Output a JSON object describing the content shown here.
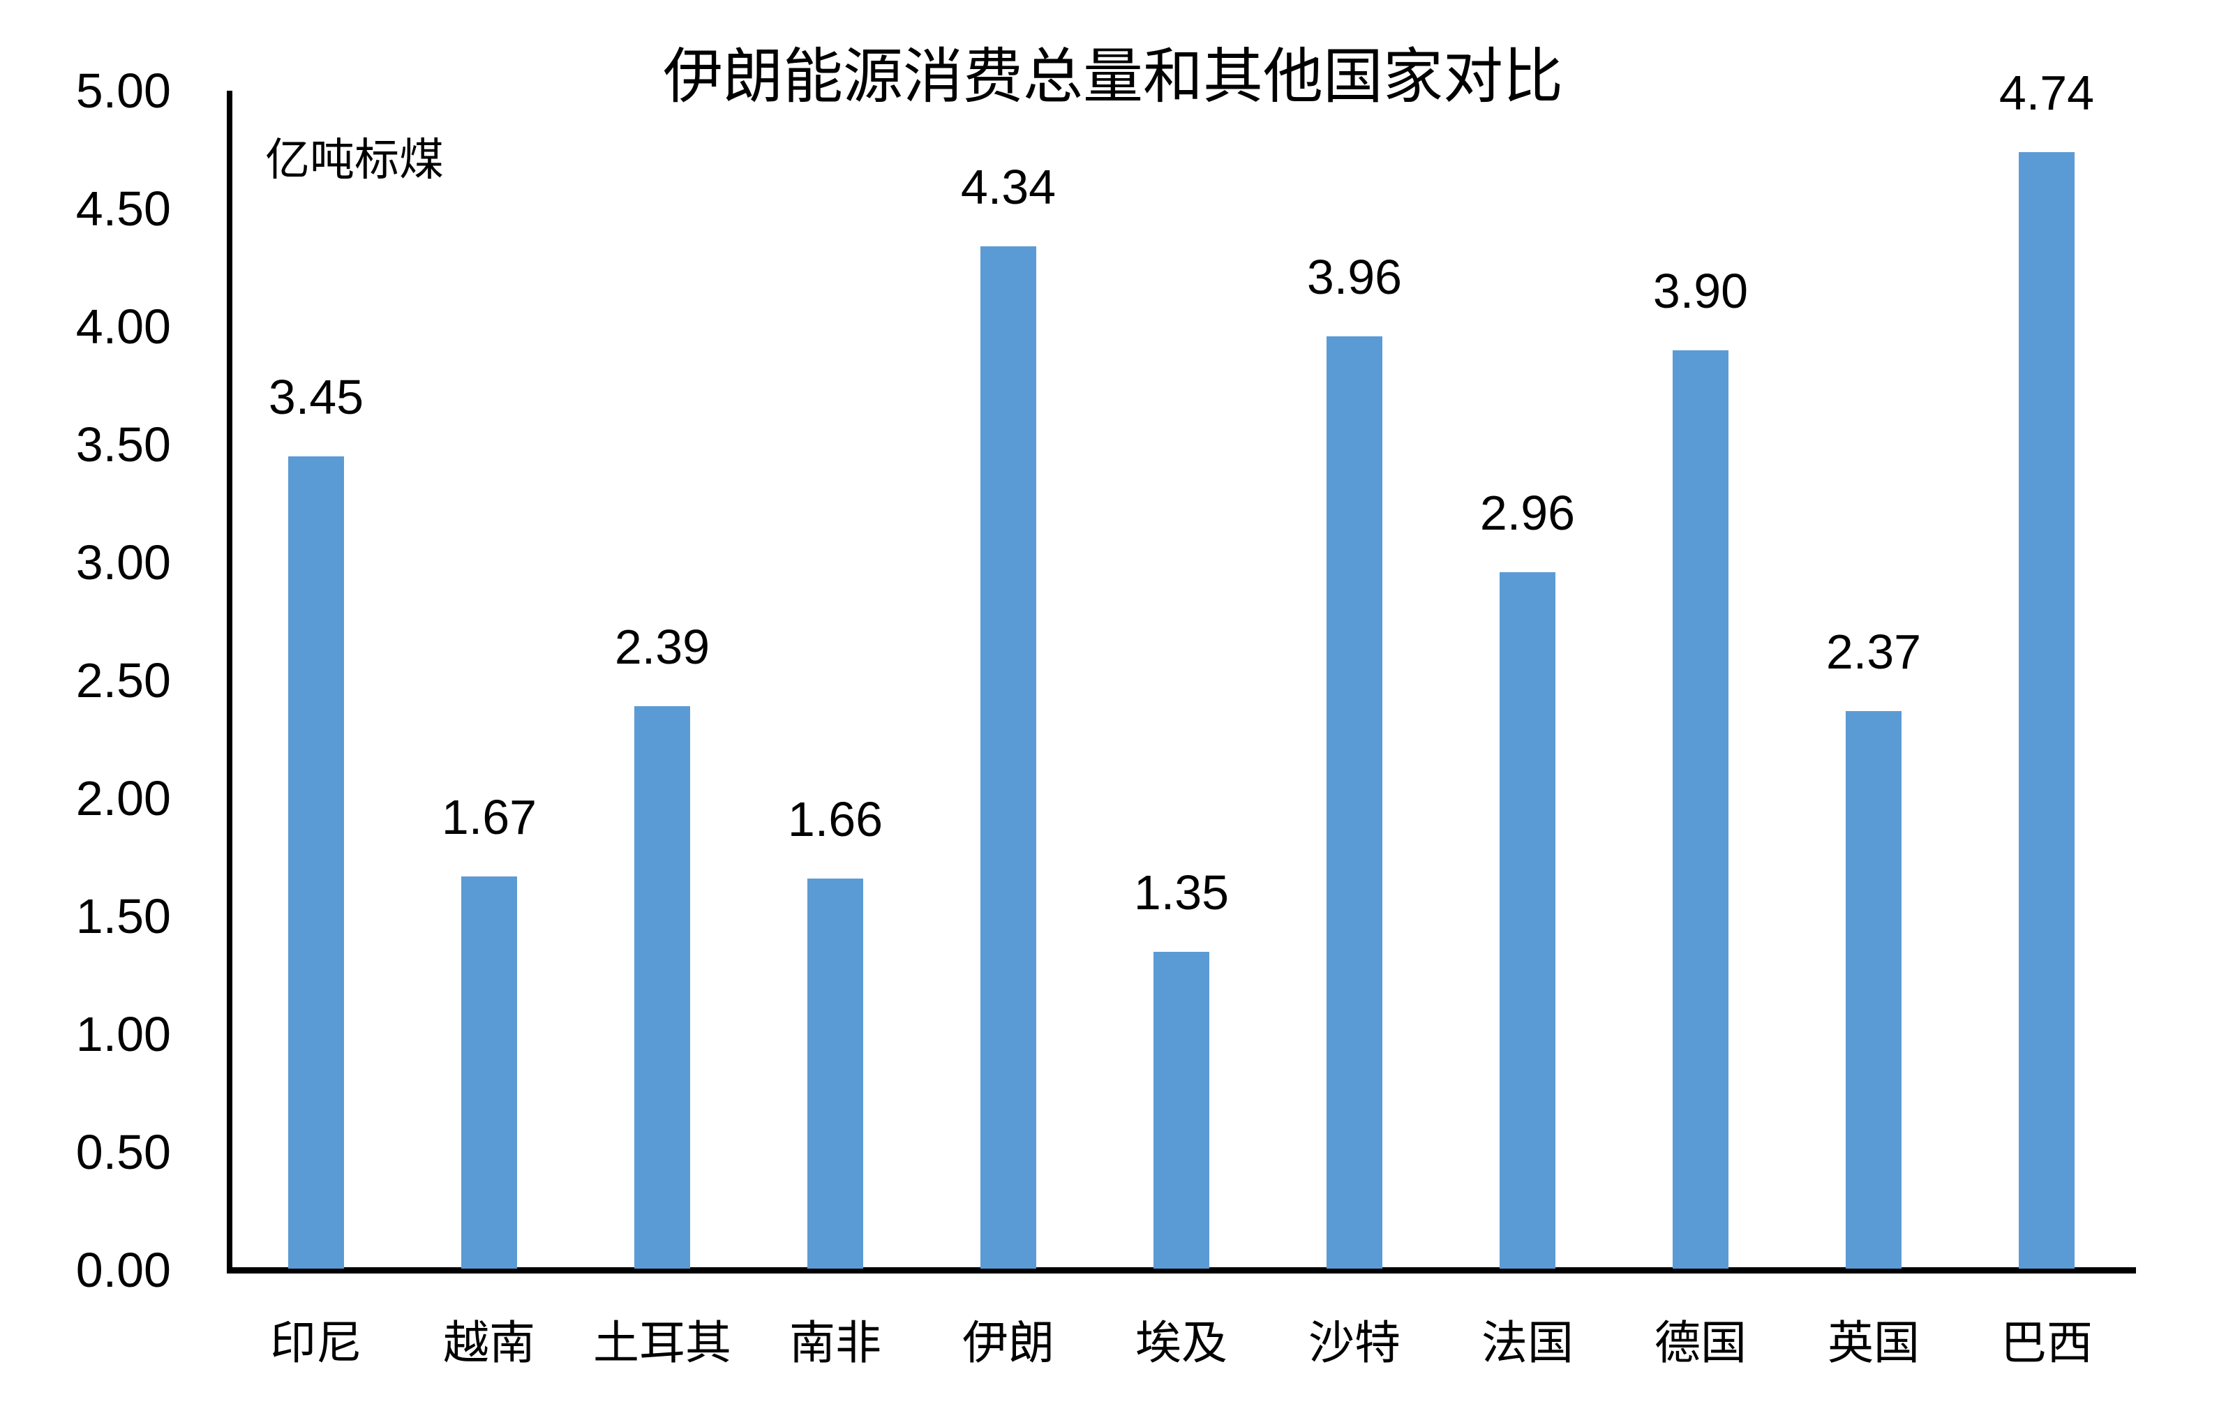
{
  "chart_data": {
    "type": "bar",
    "title": "伊朗能源消费总量和其他国家对比",
    "unit_label": "亿吨标煤",
    "categories": [
      "印尼",
      "越南",
      "土耳其",
      "南非",
      "伊朗",
      "埃及",
      "沙特",
      "法国",
      "德国",
      "英国",
      "巴西"
    ],
    "values": [
      3.45,
      1.67,
      2.39,
      1.66,
      4.34,
      1.35,
      3.96,
      2.96,
      3.9,
      2.37,
      4.74
    ],
    "value_labels": [
      "3.45",
      "1.67",
      "2.39",
      "1.66",
      "4.34",
      "1.35",
      "3.96",
      "2.96",
      "3.90",
      "2.37",
      "4.74"
    ],
    "y_axis": {
      "min": 0,
      "max": 5,
      "step": 0.5,
      "tick_labels": [
        "0.00",
        "0.50",
        "1.00",
        "1.50",
        "2.00",
        "2.50",
        "3.00",
        "3.50",
        "4.00",
        "4.50",
        "5.00"
      ]
    },
    "xlabel": "",
    "ylabel": "亿吨标煤",
    "ylim": [
      0,
      5
    ],
    "grid": false,
    "legend": false,
    "bar_color": "#5B9BD5",
    "axis_color": "#000000",
    "text_color": "#000000",
    "background_color": "#FFFFFF"
  }
}
